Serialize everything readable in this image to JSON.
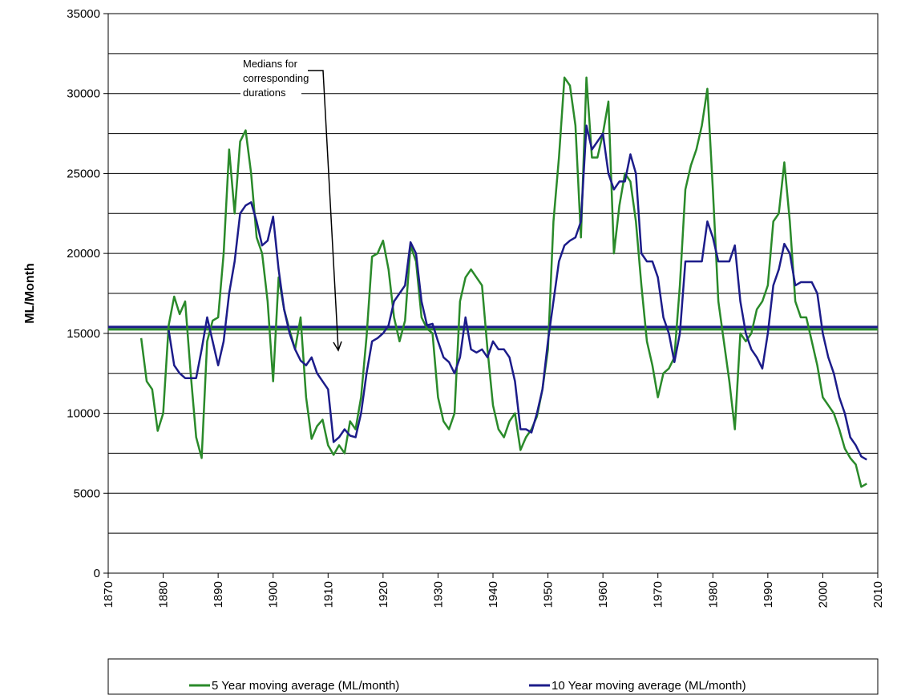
{
  "chart_data": {
    "type": "line",
    "y_label": "ML/Month",
    "annotation": [
      "Medians for",
      "corresponding",
      "durations"
    ],
    "x": [
      1876,
      1877,
      1878,
      1879,
      1880,
      1881,
      1882,
      1883,
      1884,
      1885,
      1886,
      1887,
      1888,
      1889,
      1890,
      1891,
      1892,
      1893,
      1894,
      1895,
      1896,
      1897,
      1898,
      1899,
      1900,
      1901,
      1902,
      1903,
      1904,
      1905,
      1906,
      1907,
      1908,
      1909,
      1910,
      1911,
      1912,
      1913,
      1914,
      1915,
      1916,
      1917,
      1918,
      1919,
      1920,
      1921,
      1922,
      1923,
      1924,
      1925,
      1926,
      1927,
      1928,
      1929,
      1930,
      1931,
      1932,
      1933,
      1934,
      1935,
      1936,
      1937,
      1938,
      1939,
      1940,
      1941,
      1942,
      1943,
      1944,
      1945,
      1946,
      1947,
      1948,
      1949,
      1950,
      1951,
      1952,
      1953,
      1954,
      1955,
      1956,
      1957,
      1958,
      1959,
      1960,
      1961,
      1962,
      1963,
      1964,
      1965,
      1966,
      1967,
      1968,
      1969,
      1970,
      1971,
      1972,
      1973,
      1974,
      1975,
      1976,
      1977,
      1978,
      1979,
      1980,
      1981,
      1982,
      1983,
      1984,
      1985,
      1986,
      1987,
      1988,
      1989,
      1990,
      1991,
      1992,
      1993,
      1994,
      1995,
      1996,
      1997,
      1998,
      1999,
      2000,
      2001,
      2002,
      2003,
      2004,
      2005,
      2006,
      2007,
      2008
    ],
    "series": [
      {
        "name": "5 Year moving average (ML/month)",
        "color": "#2a8a2a",
        "values": [
          14700,
          12000,
          11500,
          8900,
          10000,
          15500,
          17300,
          16200,
          17000,
          12500,
          8500,
          7200,
          14500,
          15800,
          16000,
          20000,
          26500,
          22500,
          27000,
          27700,
          25000,
          21000,
          20000,
          17000,
          12000,
          18500,
          16500,
          15200,
          14000,
          16000,
          11000,
          8400,
          9200,
          9600,
          8000,
          7400,
          8000,
          7500,
          9500,
          9000,
          11000,
          14800,
          19800,
          20000,
          20800,
          19000,
          16000,
          14500,
          15800,
          20500,
          19500,
          16000,
          15300,
          15000,
          11000,
          9500,
          9000,
          10000,
          17000,
          18500,
          19000,
          18500,
          18000,
          14000,
          10500,
          9000,
          8500,
          9500,
          10000,
          7700,
          8500,
          9000,
          9800,
          11500,
          14000,
          22000,
          26000,
          31000,
          30500,
          28000,
          21000,
          31000,
          26000,
          26000,
          27500,
          29500,
          20000,
          23000,
          25000,
          24500,
          22000,
          18000,
          14500,
          13000,
          11000,
          12500,
          12800,
          13500,
          18000,
          24000,
          25500,
          26500,
          28000,
          30300,
          24000,
          17000,
          14500,
          12000,
          9000,
          15000,
          14500,
          15000,
          16500,
          17000,
          18000,
          22000,
          22500,
          25700,
          22000,
          17000,
          16000,
          16000,
          14500,
          13000,
          11000,
          10500,
          10000,
          9000,
          7800,
          7200,
          6800,
          5400,
          5600
        ]
      },
      {
        "name": "10 Year moving average (ML/month)",
        "color": "#1c1c8a",
        "values": [
          null,
          null,
          null,
          null,
          null,
          15200,
          13000,
          12500,
          12200,
          12200,
          12200,
          14000,
          16000,
          14500,
          13000,
          14500,
          17500,
          19500,
          22500,
          23000,
          23200,
          22000,
          20500,
          20800,
          22300,
          19000,
          16500,
          15000,
          14000,
          13300,
          13000,
          13500,
          12500,
          12000,
          11500,
          8200,
          8500,
          9000,
          8600,
          8500,
          10000,
          12500,
          14500,
          14700,
          15000,
          15500,
          17000,
          17500,
          18000,
          20700,
          20000,
          17000,
          15500,
          15600,
          14500,
          13500,
          13200,
          12500,
          13500,
          16000,
          14000,
          13800,
          14000,
          13500,
          14500,
          14000,
          14000,
          13500,
          12000,
          9000,
          9000,
          8800,
          10000,
          11500,
          14500,
          17000,
          19500,
          20500,
          20800,
          21000,
          22000,
          28000,
          26500,
          27000,
          27500,
          25000,
          24000,
          24500,
          24500,
          26200,
          25000,
          20000,
          19500,
          19500,
          18500,
          16000,
          15000,
          13200,
          15000,
          19500,
          19500,
          19500,
          19500,
          22000,
          21000,
          19500,
          19500,
          19500,
          20500,
          17000,
          15000,
          14000,
          13500,
          12800,
          15000,
          18000,
          19000,
          20600,
          20000,
          18000,
          18200,
          18200,
          18200,
          17500,
          15000,
          13500,
          12500,
          11000,
          10000,
          8500,
          8000,
          7300,
          7100
        ]
      }
    ],
    "medians": [
      {
        "value": 15250,
        "color": "#2a8a2a"
      },
      {
        "value": 15400,
        "color": "#1c1c8a"
      }
    ],
    "xlim": [
      1870,
      2010
    ],
    "xticks": [
      1870,
      1880,
      1890,
      1900,
      1910,
      1920,
      1930,
      1940,
      1950,
      1960,
      1970,
      1980,
      1990,
      2000,
      2010
    ],
    "ylim": [
      0,
      35000
    ],
    "yticks": [
      0,
      5000,
      10000,
      15000,
      20000,
      25000,
      30000,
      35000
    ],
    "ygrid": [
      2500,
      5000,
      7500,
      10000,
      12500,
      15000,
      17500,
      20000,
      22500,
      25000,
      27500,
      30000,
      32500,
      35000
    ]
  }
}
